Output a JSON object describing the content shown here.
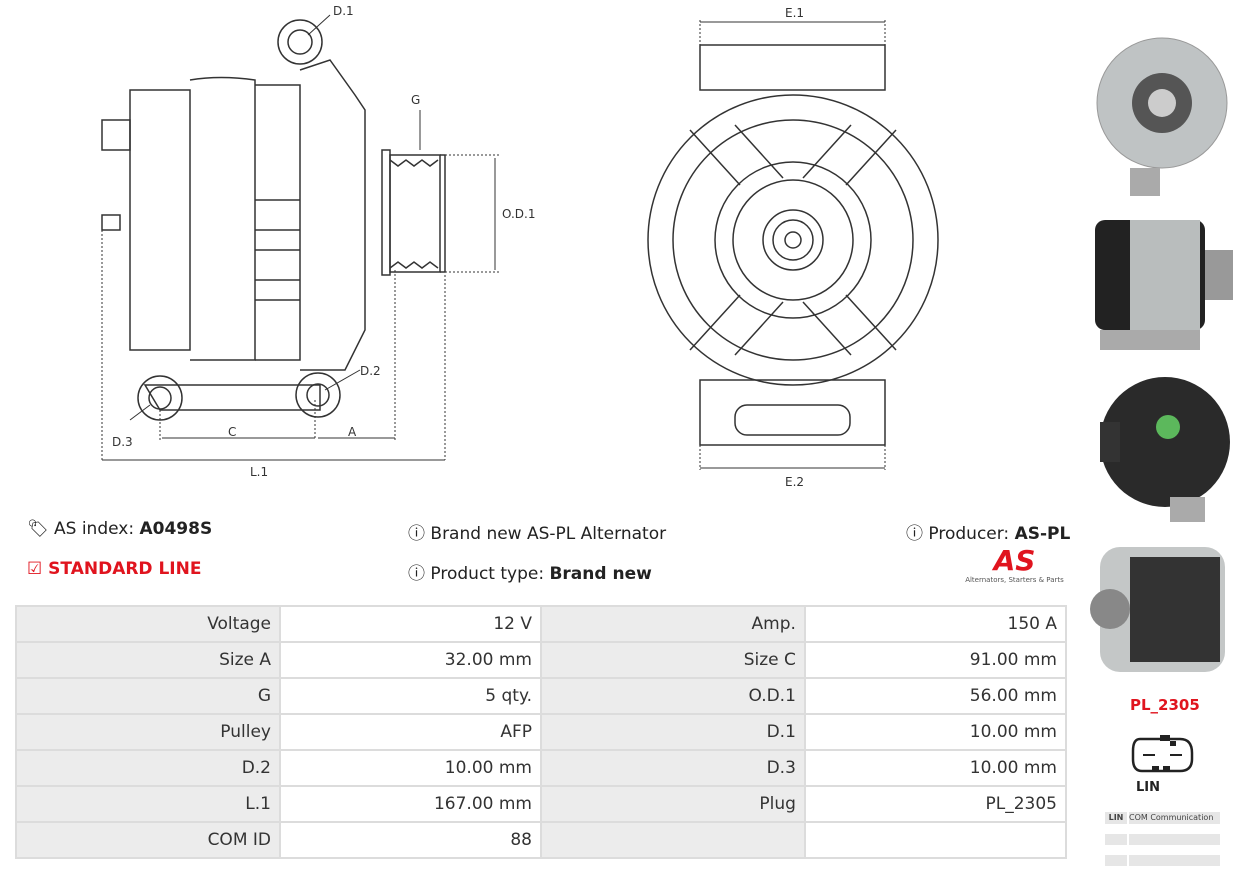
{
  "diagram": {
    "side_labels": [
      "D.1",
      "G",
      "O.D.1",
      "D.2",
      "D.3",
      "C",
      "A",
      "L.1"
    ],
    "front_labels": [
      "E.1",
      "E.2"
    ]
  },
  "info": {
    "as_index_label": "AS index:",
    "as_index_value": "A0498S",
    "line": "STANDARD LINE",
    "description": "Brand new AS-PL Alternator",
    "product_type_label": "Product type:",
    "product_type_value": "Brand new",
    "producer_label": "Producer:",
    "producer_value": "AS-PL",
    "logo_text": "AS",
    "logo_tagline": "Alternators, Starters & Parts"
  },
  "specs": [
    [
      "Voltage",
      "12 V",
      "Amp.",
      "150 A"
    ],
    [
      "Size A",
      "32.00 mm",
      "Size C",
      "91.00 mm"
    ],
    [
      "G",
      "5 qty.",
      "O.D.1",
      "56.00 mm"
    ],
    [
      "Pulley",
      "AFP",
      "D.1",
      "10.00 mm"
    ],
    [
      "D.2",
      "10.00 mm",
      "D.3",
      "10.00 mm"
    ],
    [
      "L.1",
      "167.00 mm",
      "Plug",
      "PL_2305"
    ],
    [
      "COM ID",
      "88",
      "",
      ""
    ]
  ],
  "plug": {
    "code": "PL_2305",
    "terminal": "LIN",
    "legend": [
      {
        "pin": "LIN",
        "desc": "COM Communication"
      }
    ]
  },
  "colors": {
    "accent": "#e0141e",
    "table_bg": "#dcdcdc",
    "label_bg": "#ececec"
  }
}
